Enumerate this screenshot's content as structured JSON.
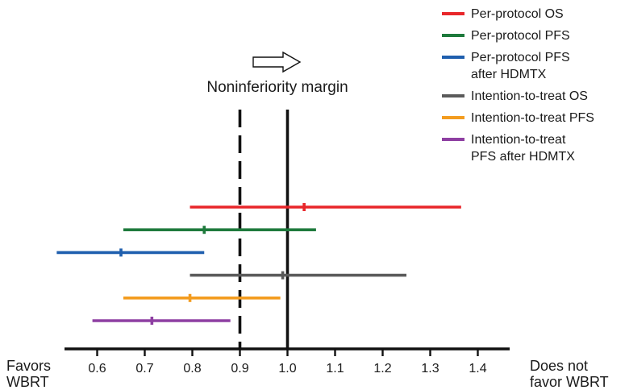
{
  "chart_data": {
    "type": "forest",
    "title": "",
    "xlabel": "",
    "ylabel": "",
    "x_ticks": [
      0.6,
      0.7,
      0.8,
      0.9,
      1.0,
      1.1,
      1.2,
      1.3,
      1.4
    ],
    "x_tick_labels": [
      "0.6",
      "0.7",
      "0.8",
      "0.9",
      "1.0",
      "1.1",
      "1.2",
      "1.3",
      "1.4"
    ],
    "xlim": [
      0.53,
      1.47
    ],
    "grid": false,
    "legend_position": "top-right",
    "left_annotation": [
      "Favors",
      "WBRT"
    ],
    "right_annotation": [
      "Does not",
      "favor WBRT"
    ],
    "reference_lines": [
      {
        "x": 0.9,
        "style": "dashed",
        "label": [
          "Noninferiority margin"
        ]
      },
      {
        "x": 1.0,
        "style": "solid"
      }
    ],
    "series": [
      {
        "name": [
          "Per-protocol OS"
        ],
        "color": "#e8262a",
        "estimate": 1.035,
        "ci": [
          0.795,
          1.365
        ]
      },
      {
        "name": [
          "Per-protocol PFS"
        ],
        "color": "#1e7a3c",
        "estimate": 0.825,
        "ci": [
          0.655,
          1.06
        ]
      },
      {
        "name": [
          "Per-protocol PFS",
          "after HDMTX"
        ],
        "color": "#1f5fae",
        "estimate": 0.65,
        "ci": [
          0.515,
          0.825
        ]
      },
      {
        "name": [
          "Intention-to-treat OS"
        ],
        "color": "#5a5a5a",
        "estimate": 0.99,
        "ci": [
          0.795,
          1.25
        ]
      },
      {
        "name": [
          "Intention-to-treat PFS"
        ],
        "color": "#f39c1f",
        "estimate": 0.795,
        "ci": [
          0.655,
          0.985
        ]
      },
      {
        "name": [
          "Intention-to-treat",
          "PFS after HDMTX"
        ],
        "color": "#8e3fa2",
        "estimate": 0.715,
        "ci": [
          0.59,
          0.88
        ]
      }
    ]
  }
}
